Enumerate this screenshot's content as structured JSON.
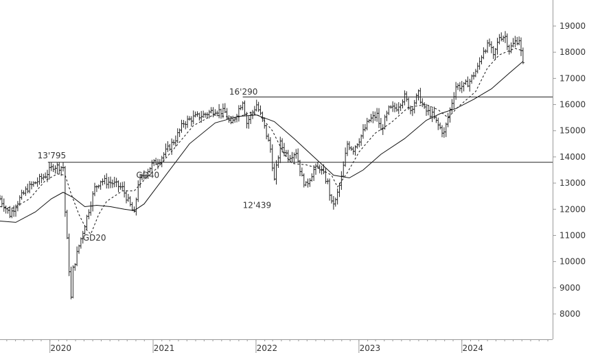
{
  "chart_data": {
    "type": "ohlc",
    "title": "",
    "xlabel": "",
    "ylabel": "",
    "ylim": [
      7000,
      19700
    ],
    "xlim": [
      "2019-07-08",
      "2024-11-18"
    ],
    "grid": false,
    "y_ticks": [
      8000,
      9000,
      10000,
      11000,
      12000,
      13000,
      14000,
      15000,
      16000,
      17000,
      18000,
      19000
    ],
    "y_tick_labels": [
      "8000",
      "9000",
      "10000",
      "11000",
      "12000",
      "13000",
      "14000",
      "15000",
      "16000",
      "17000",
      "18000",
      "19000"
    ],
    "x_labels": [
      {
        "label": "2020",
        "x": "2020-01-01"
      },
      {
        "label": "2021",
        "x": "2021-01-01"
      },
      {
        "label": "2022",
        "x": "2022-01-01"
      },
      {
        "label": "2023",
        "x": "2023-01-01"
      },
      {
        "label": "2024",
        "x": "2024-01-01"
      }
    ],
    "horizontal_lines": [
      {
        "y": 13795,
        "x_start": "2019-12-25",
        "x_end": "2024-11-18"
      },
      {
        "y": 16290,
        "x_start": "2021-11-15",
        "x_end": "2024-11-18"
      }
    ],
    "annotations": [
      {
        "text": "13'795",
        "x": "2019-11-18",
        "y": 13950
      },
      {
        "text": "16'290",
        "x": "2021-09-28",
        "y": 16380
      },
      {
        "text": "12'439",
        "x": "2021-11-15",
        "y": 12050
      },
      {
        "text": "GD40",
        "x": "2020-11-02",
        "y": 13200
      },
      {
        "text": "GD20",
        "x": "2020-04-27",
        "y": 10800
      }
    ],
    "price_anchors": [
      [
        "2019-07-08",
        12400
      ],
      [
        "2019-08-12",
        11800
      ],
      [
        "2019-09-16",
        12400
      ],
      [
        "2019-10-14",
        12800
      ],
      [
        "2019-12-16",
        13300
      ],
      [
        "2020-01-13",
        13650
      ],
      [
        "2020-02-17",
        13600
      ],
      [
        "2020-02-24",
        11900
      ],
      [
        "2020-03-09",
        9700
      ],
      [
        "2020-03-16",
        8600
      ],
      [
        "2020-03-23",
        9700
      ],
      [
        "2020-04-13",
        10600
      ],
      [
        "2020-05-11",
        11700
      ],
      [
        "2020-06-08",
        12800
      ],
      [
        "2020-06-29",
        13100
      ],
      [
        "2020-08-10",
        13000
      ],
      [
        "2020-09-14",
        12800
      ],
      [
        "2020-10-26",
        11800
      ],
      [
        "2020-11-09",
        13000
      ],
      [
        "2020-12-28",
        13700
      ],
      [
        "2021-01-25",
        13900
      ],
      [
        "2021-03-22",
        14700
      ],
      [
        "2021-04-19",
        15300
      ],
      [
        "2021-05-24",
        15500
      ],
      [
        "2021-06-28",
        15600
      ],
      [
        "2021-08-09",
        15800
      ],
      [
        "2021-09-13",
        15700
      ],
      [
        "2021-10-04",
        15200
      ],
      [
        "2021-11-15",
        16150
      ],
      [
        "2021-11-29",
        15300
      ],
      [
        "2022-01-03",
        16000
      ],
      [
        "2022-01-24",
        15400
      ],
      [
        "2022-02-21",
        14300
      ],
      [
        "2022-03-07",
        13100
      ],
      [
        "2022-03-28",
        14500
      ],
      [
        "2022-04-25",
        14000
      ],
      [
        "2022-05-23",
        14200
      ],
      [
        "2022-06-13",
        13200
      ],
      [
        "2022-06-27",
        12900
      ],
      [
        "2022-07-25",
        13500
      ],
      [
        "2022-08-15",
        13600
      ],
      [
        "2022-09-12",
        13000
      ],
      [
        "2022-09-26",
        12200
      ],
      [
        "2022-10-10",
        12300
      ],
      [
        "2022-10-31",
        13200
      ],
      [
        "2022-11-21",
        14500
      ],
      [
        "2022-12-12",
        14300
      ],
      [
        "2023-01-09",
        14800
      ],
      [
        "2023-02-06",
        15400
      ],
      [
        "2023-03-06",
        15600
      ],
      [
        "2023-03-20",
        15000
      ],
      [
        "2023-04-17",
        15800
      ],
      [
        "2023-05-15",
        15900
      ],
      [
        "2023-06-12",
        16300
      ],
      [
        "2023-07-03",
        15800
      ],
      [
        "2023-07-31",
        16400
      ],
      [
        "2023-08-21",
        15800
      ],
      [
        "2023-09-18",
        15600
      ],
      [
        "2023-10-09",
        15200
      ],
      [
        "2023-10-30",
        14900
      ],
      [
        "2023-11-20",
        15800
      ],
      [
        "2023-12-11",
        16700
      ],
      [
        "2024-01-08",
        16700
      ],
      [
        "2024-01-29",
        16900
      ],
      [
        "2024-02-26",
        17400
      ],
      [
        "2024-03-18",
        18100
      ],
      [
        "2024-04-08",
        18300
      ],
      [
        "2024-04-22",
        17800
      ],
      [
        "2024-05-13",
        18600
      ],
      [
        "2024-06-03",
        18600
      ],
      [
        "2024-06-17",
        18100
      ],
      [
        "2024-07-08",
        18400
      ],
      [
        "2024-07-22",
        18500
      ],
      [
        "2024-08-05",
        17500
      ]
    ],
    "gd20": [
      [
        "2019-07-08",
        12100
      ],
      [
        "2019-08-26",
        12050
      ],
      [
        "2019-10-21",
        12400
      ],
      [
        "2019-12-16",
        13100
      ],
      [
        "2020-01-27",
        13350
      ],
      [
        "2020-02-24",
        13300
      ],
      [
        "2020-03-16",
        12600
      ],
      [
        "2020-04-13",
        11800
      ],
      [
        "2020-05-11",
        11200
      ],
      [
        "2020-05-25",
        11050
      ],
      [
        "2020-06-22",
        11800
      ],
      [
        "2020-07-20",
        12300
      ],
      [
        "2020-09-14",
        12700
      ],
      [
        "2020-10-26",
        12700
      ],
      [
        "2020-12-07",
        13200
      ],
      [
        "2021-01-18",
        13600
      ],
      [
        "2021-03-15",
        14300
      ],
      [
        "2021-05-24",
        15200
      ],
      [
        "2021-08-02",
        15600
      ],
      [
        "2021-10-25",
        15500
      ],
      [
        "2021-12-13",
        15700
      ],
      [
        "2022-01-17",
        15550
      ],
      [
        "2022-02-28",
        15000
      ],
      [
        "2022-04-11",
        14100
      ],
      [
        "2022-05-09",
        13750
      ],
      [
        "2022-06-27",
        13700
      ],
      [
        "2022-08-15",
        13550
      ],
      [
        "2022-09-26",
        13300
      ],
      [
        "2022-10-17",
        12850
      ],
      [
        "2022-11-21",
        13400
      ],
      [
        "2023-01-02",
        14200
      ],
      [
        "2023-02-27",
        14900
      ],
      [
        "2023-04-24",
        15300
      ],
      [
        "2023-06-26",
        15900
      ],
      [
        "2023-08-28",
        16000
      ],
      [
        "2023-10-09",
        15800
      ],
      [
        "2023-11-13",
        15500
      ],
      [
        "2023-12-18",
        15900
      ],
      [
        "2024-02-19",
        16500
      ],
      [
        "2024-04-01",
        17400
      ],
      [
        "2024-05-13",
        17900
      ],
      [
        "2024-07-08",
        18150
      ],
      [
        "2024-08-05",
        18050
      ]
    ],
    "gd40": [
      [
        "2019-07-08",
        11550
      ],
      [
        "2019-09-02",
        11500
      ],
      [
        "2019-11-11",
        11900
      ],
      [
        "2020-01-06",
        12400
      ],
      [
        "2020-02-17",
        12650
      ],
      [
        "2020-03-23",
        12450
      ],
      [
        "2020-05-04",
        12100
      ],
      [
        "2020-06-15",
        12150
      ],
      [
        "2020-08-03",
        12100
      ],
      [
        "2020-09-21",
        12000
      ],
      [
        "2020-10-26",
        11950
      ],
      [
        "2020-11-30",
        12200
      ],
      [
        "2021-01-11",
        12800
      ],
      [
        "2021-03-08",
        13600
      ],
      [
        "2021-05-10",
        14500
      ],
      [
        "2021-08-09",
        15300
      ],
      [
        "2021-11-01",
        15550
      ],
      [
        "2022-01-03",
        15600
      ],
      [
        "2022-03-07",
        15350
      ],
      [
        "2022-05-16",
        14700
      ],
      [
        "2022-07-25",
        14000
      ],
      [
        "2022-10-03",
        13300
      ],
      [
        "2022-11-28",
        13200
      ],
      [
        "2023-01-16",
        13500
      ],
      [
        "2023-03-20",
        14100
      ],
      [
        "2023-06-12",
        14700
      ],
      [
        "2023-08-28",
        15400
      ],
      [
        "2023-10-16",
        15650
      ],
      [
        "2023-12-11",
        15850
      ],
      [
        "2024-02-12",
        16200
      ],
      [
        "2024-04-15",
        16600
      ],
      [
        "2024-06-17",
        17200
      ],
      [
        "2024-08-05",
        17650
      ]
    ]
  }
}
